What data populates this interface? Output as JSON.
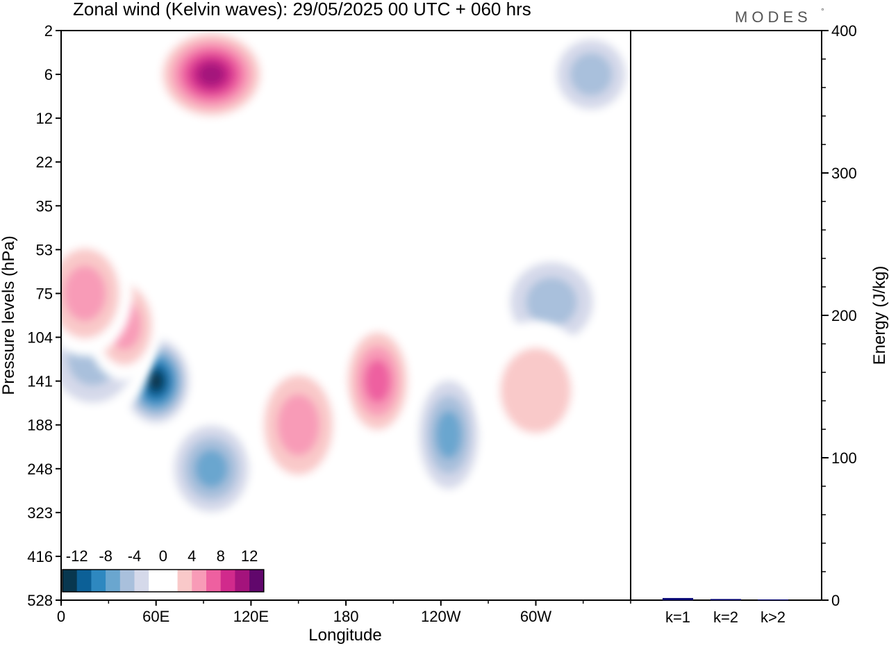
{
  "title": "Zonal wind (Kelvin waves):  29/05/2025  00 UTC  + 060 hrs",
  "brand": "MODES",
  "brand_mark": "°",
  "chart_data": [
    {
      "type": "heatmap",
      "title": "Zonal wind (Kelvin waves):  29/05/2025  00 UTC  + 060 hrs",
      "xlabel": "Longitude",
      "ylabel": "Pressure levels (hPa)",
      "x_ticks": [
        "0",
        "60E",
        "120E",
        "180",
        "120W",
        "60W"
      ],
      "y_ticks": [
        "2",
        "6",
        "12",
        "22",
        "35",
        "53",
        "75",
        "104",
        "141",
        "188",
        "248",
        "323",
        "416",
        "528"
      ],
      "y_scale": "log (pressure levels)",
      "colorbar": {
        "labels": [
          "-12",
          "-8",
          "-4",
          "0",
          "4",
          "8",
          "12"
        ],
        "colors": [
          "#08374f",
          "#0c6097",
          "#2e88c0",
          "#6aa6cf",
          "#a9c0dc",
          "#d5d9ea",
          "#ffffff",
          "#ffffff",
          "#f9c9c9",
          "#f89bb7",
          "#ee60a0",
          "#d12a8c",
          "#a4137c",
          "#61076c"
        ]
      },
      "regions": [
        {
          "lon": 60,
          "p": 141,
          "value": -13
        },
        {
          "lon": 95,
          "p": 248,
          "value": -7
        },
        {
          "lon": 20,
          "p": 120,
          "value": -6
        },
        {
          "lon": 245,
          "p": 200,
          "value": -7
        },
        {
          "lon": 335,
          "p": 6,
          "value": -6
        },
        {
          "lon": 310,
          "p": 80,
          "value": -5
        },
        {
          "lon": 200,
          "p": 141,
          "value": 8
        },
        {
          "lon": 150,
          "p": 188,
          "value": 5
        },
        {
          "lon": 95,
          "p": 6,
          "value": 11
        },
        {
          "lon": 40,
          "p": 95,
          "value": 6
        },
        {
          "lon": 15,
          "p": 75,
          "value": 5
        },
        {
          "lon": 300,
          "p": 150,
          "value": 4
        }
      ],
      "grid": false
    },
    {
      "type": "bar",
      "categories": [
        "k=1",
        "k=2",
        "k>2"
      ],
      "values": [
        1.5,
        0.8,
        0.5
      ],
      "ylabel": "Energy (J/kg)",
      "y_ticks": [
        "0",
        "100",
        "200",
        "300",
        "400"
      ],
      "ylim": [
        0,
        400
      ],
      "color": "#0a0a78"
    }
  ]
}
